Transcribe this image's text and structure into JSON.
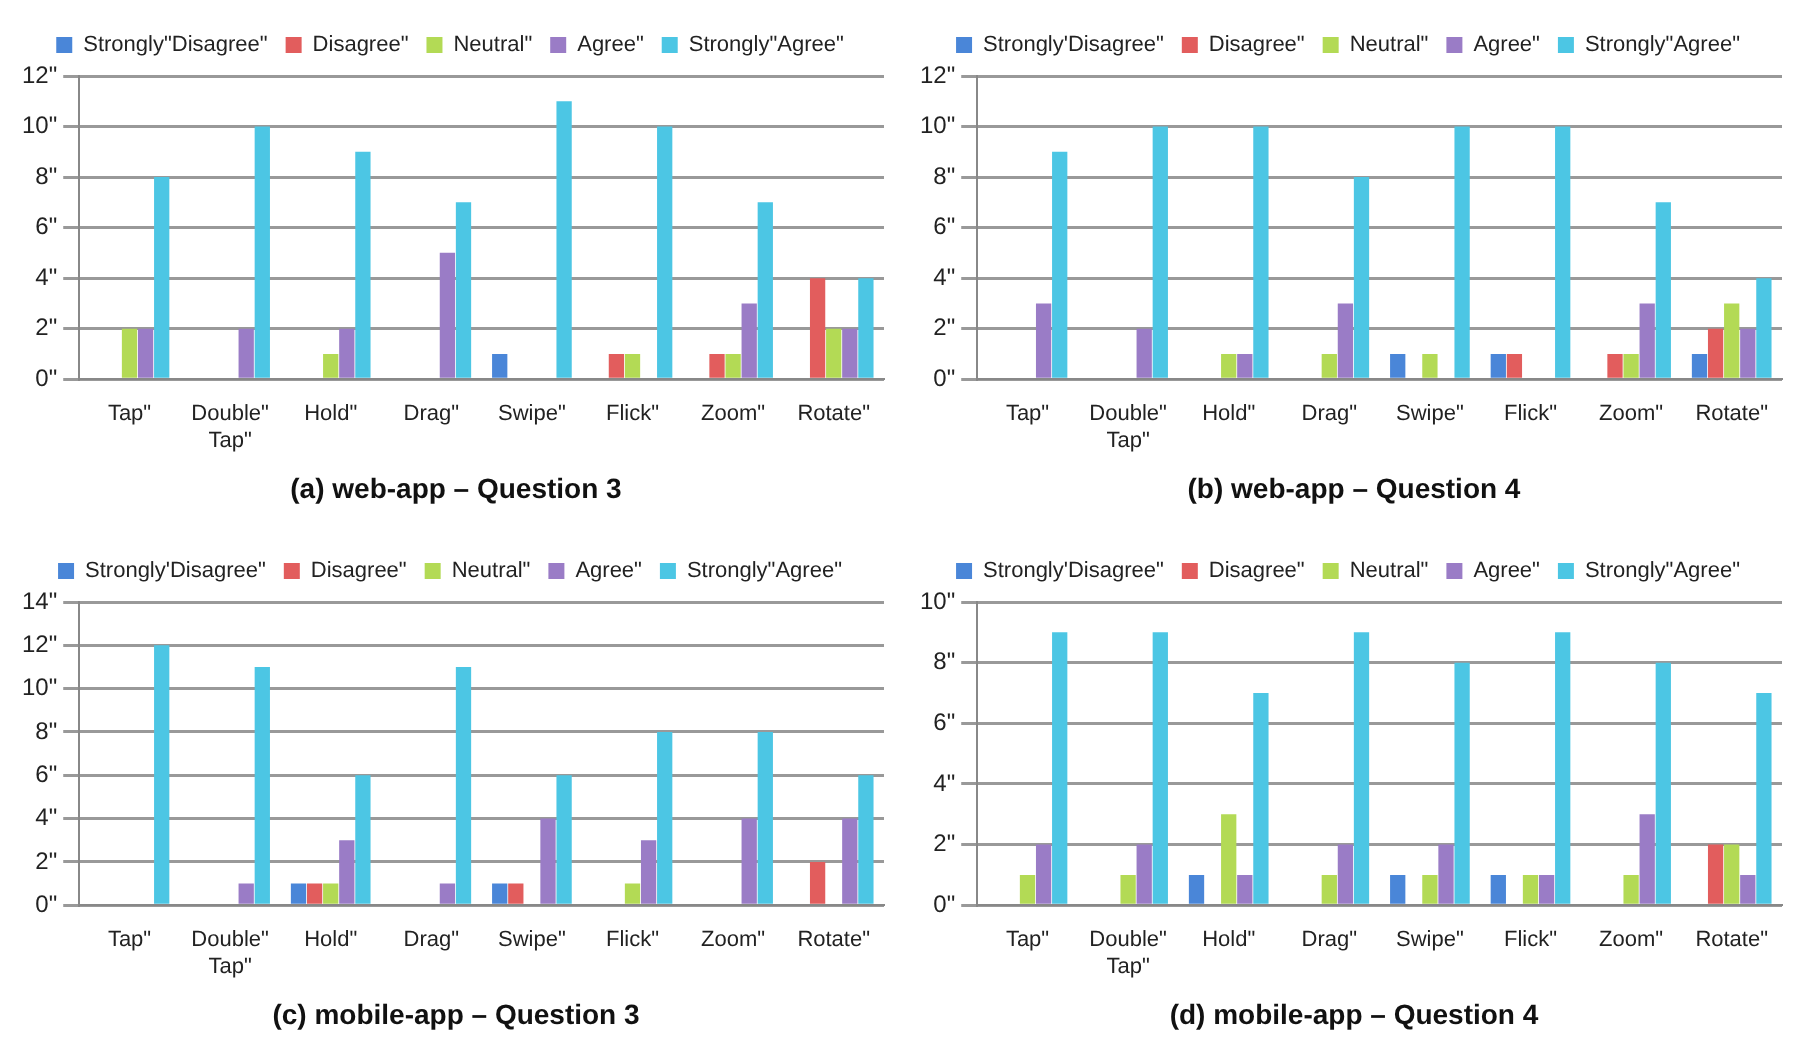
{
  "chart_data": [
    {
      "type": "bar",
      "title": "(a) web-app – Question 3",
      "categories": [
        "Tap\"",
        "Double\" Tap\"",
        "Hold\"",
        "Drag\"",
        "Swipe\"",
        "Flick\"",
        "Zoom\"",
        "Rotate\""
      ],
      "series": [
        {
          "name": "Strongly\"Disagree\"",
          "color": "#4a86d8",
          "values": [
            0,
            0,
            0,
            0,
            1,
            0,
            0,
            0
          ]
        },
        {
          "name": "Disagree\"",
          "color": "#e25d5d",
          "values": [
            0,
            0,
            0,
            0,
            0,
            1,
            1,
            4
          ]
        },
        {
          "name": "Neutral\"",
          "color": "#b3da55",
          "values": [
            2,
            0,
            1,
            0,
            0,
            1,
            1,
            2
          ]
        },
        {
          "name": "Agree\"",
          "color": "#9a7cc6",
          "values": [
            2,
            2,
            2,
            5,
            0,
            0,
            3,
            2
          ]
        },
        {
          "name": "Strongly\"Agree\"",
          "color": "#4cc6e4",
          "values": [
            8,
            10,
            9,
            7,
            11,
            10,
            7,
            4
          ]
        }
      ],
      "ylim": [
        0,
        12
      ],
      "yticks": [
        {
          "value": 0,
          "label": "0\""
        },
        {
          "value": 2,
          "label": "2\""
        },
        {
          "value": 4,
          "label": "4\""
        },
        {
          "value": 6,
          "label": "6\""
        },
        {
          "value": 8,
          "label": "8\""
        },
        {
          "value": 10,
          "label": "10\""
        },
        {
          "value": 12,
          "label": "12\""
        }
      ],
      "grid": "y",
      "legend": "top"
    },
    {
      "type": "bar",
      "title": "(b) web-app – Question 4",
      "categories": [
        "Tap\"",
        "Double\" Tap\"",
        "Hold\"",
        "Drag\"",
        "Swipe\"",
        "Flick\"",
        "Zoom\"",
        "Rotate\""
      ],
      "series": [
        {
          "name": "Strongly'Disagree\"",
          "color": "#4a86d8",
          "values": [
            0,
            0,
            0,
            0,
            1,
            1,
            0,
            1
          ]
        },
        {
          "name": "Disagree\"",
          "color": "#e25d5d",
          "values": [
            0,
            0,
            0,
            0,
            0,
            1,
            1,
            2
          ]
        },
        {
          "name": "Neutral\"",
          "color": "#b3da55",
          "values": [
            0,
            0,
            1,
            1,
            1,
            0,
            1,
            3
          ]
        },
        {
          "name": "Agree\"",
          "color": "#9a7cc6",
          "values": [
            3,
            2,
            1,
            3,
            0,
            0,
            3,
            2
          ]
        },
        {
          "name": "Strongly\"Agree\"",
          "color": "#4cc6e4",
          "values": [
            9,
            10,
            10,
            8,
            10,
            10,
            7,
            4
          ]
        }
      ],
      "ylim": [
        0,
        12
      ],
      "yticks": [
        {
          "value": 0,
          "label": "0\""
        },
        {
          "value": 2,
          "label": "2\""
        },
        {
          "value": 4,
          "label": "4\""
        },
        {
          "value": 6,
          "label": "6\""
        },
        {
          "value": 8,
          "label": "8\""
        },
        {
          "value": 10,
          "label": "10\""
        },
        {
          "value": 12,
          "label": "12\""
        }
      ],
      "grid": "y",
      "legend": "top"
    },
    {
      "type": "bar",
      "title": "(c) mobile-app – Question 3",
      "categories": [
        "Tap\"",
        "Double\" Tap\"",
        "Hold\"",
        "Drag\"",
        "Swipe\"",
        "Flick\"",
        "Zoom\"",
        "Rotate\""
      ],
      "series": [
        {
          "name": "Strongly'Disagree\"",
          "color": "#4a86d8",
          "values": [
            0,
            0,
            1,
            0,
            1,
            0,
            0,
            0
          ]
        },
        {
          "name": "Disagree\"",
          "color": "#e25d5d",
          "values": [
            0,
            0,
            1,
            0,
            1,
            0,
            0,
            2
          ]
        },
        {
          "name": "Neutral\"",
          "color": "#b3da55",
          "values": [
            0,
            0,
            1,
            0,
            0,
            1,
            0,
            0
          ]
        },
        {
          "name": "Agree\"",
          "color": "#9a7cc6",
          "values": [
            0,
            1,
            3,
            1,
            4,
            3,
            4,
            4
          ]
        },
        {
          "name": "Strongly\"Agree\"",
          "color": "#4cc6e4",
          "values": [
            12,
            11,
            6,
            11,
            6,
            8,
            8,
            6
          ]
        }
      ],
      "ylim": [
        0,
        14
      ],
      "yticks": [
        {
          "value": 0,
          "label": "0\""
        },
        {
          "value": 2,
          "label": "2\""
        },
        {
          "value": 4,
          "label": "4\""
        },
        {
          "value": 6,
          "label": "6\""
        },
        {
          "value": 8,
          "label": "8\""
        },
        {
          "value": 10,
          "label": "10\""
        },
        {
          "value": 12,
          "label": "12\""
        },
        {
          "value": 14,
          "label": "14\""
        }
      ],
      "grid": "y",
      "legend": "top"
    },
    {
      "type": "bar",
      "title": "(d) mobile-app – Question 4",
      "categories": [
        "Tap\"",
        "Double\" Tap\"",
        "Hold\"",
        "Drag\"",
        "Swipe\"",
        "Flick\"",
        "Zoom\"",
        "Rotate\""
      ],
      "series": [
        {
          "name": "Strongly'Disagree\"",
          "color": "#4a86d8",
          "values": [
            0,
            0,
            1,
            0,
            1,
            1,
            0,
            0
          ]
        },
        {
          "name": "Disagree\"",
          "color": "#e25d5d",
          "values": [
            0,
            0,
            0,
            0,
            0,
            0,
            0,
            2
          ]
        },
        {
          "name": "Neutral\"",
          "color": "#b3da55",
          "values": [
            1,
            1,
            3,
            1,
            1,
            1,
            1,
            2
          ]
        },
        {
          "name": "Agree\"",
          "color": "#9a7cc6",
          "values": [
            2,
            2,
            1,
            2,
            2,
            1,
            3,
            1
          ]
        },
        {
          "name": "Strongly\"Agree\"",
          "color": "#4cc6e4",
          "values": [
            9,
            9,
            7,
            9,
            8,
            9,
            8,
            7
          ]
        }
      ],
      "ylim": [
        0,
        10
      ],
      "yticks": [
        {
          "value": 0,
          "label": "0\""
        },
        {
          "value": 2,
          "label": "2\""
        },
        {
          "value": 4,
          "label": "4\""
        },
        {
          "value": 6,
          "label": "6\""
        },
        {
          "value": 8,
          "label": "8\""
        },
        {
          "value": 10,
          "label": "10\""
        }
      ],
      "grid": "y",
      "legend": "top"
    }
  ]
}
